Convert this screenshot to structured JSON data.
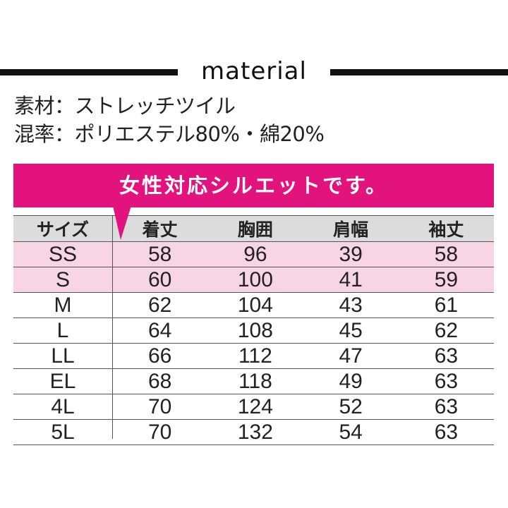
{
  "header": {
    "title": "material"
  },
  "material": {
    "line1": "素材：ストレッチツイル",
    "line2": "混率：ポリエステル80%・綿20%"
  },
  "banner": {
    "text": "女性対応シルエットです。"
  },
  "colors": {
    "accent": "#e3137e",
    "highlight_row": "#f7d5e4",
    "header_row": "#dcdcdc"
  },
  "table": {
    "headers": [
      "サイズ",
      "着丈",
      "胸囲",
      "肩幅",
      "袖丈"
    ],
    "rows": [
      [
        "SS",
        "58",
        "96",
        "39",
        "58"
      ],
      [
        "S",
        "60",
        "100",
        "41",
        "59"
      ],
      [
        "M",
        "62",
        "104",
        "43",
        "61"
      ],
      [
        "L",
        "64",
        "108",
        "45",
        "62"
      ],
      [
        "LL",
        "66",
        "112",
        "47",
        "63"
      ],
      [
        "EL",
        "68",
        "118",
        "49",
        "63"
      ],
      [
        "4L",
        "70",
        "124",
        "52",
        "63"
      ],
      [
        "5L",
        "70",
        "132",
        "54",
        "63"
      ]
    ],
    "highlighted_rows": [
      "SS",
      "S"
    ]
  }
}
